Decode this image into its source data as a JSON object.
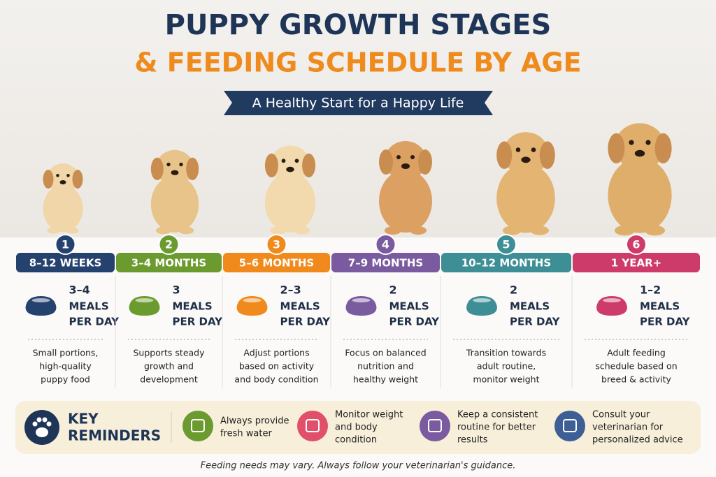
{
  "header": {
    "title_line1": "PUPPY GROWTH STAGES",
    "title_line2": "& FEEDING SCHEDULE BY AGE",
    "subtitle": "A Healthy Start for a Happy Life"
  },
  "stages": [
    {
      "number": 1,
      "age": "8–12 WEEKS",
      "meals": "3–4",
      "unit": [
        "MEALS",
        "PER DAY"
      ],
      "description": [
        "Small portions,",
        "high-quality",
        "puppy food"
      ],
      "color": "#25426e"
    },
    {
      "number": 2,
      "age": "3–4 MONTHS",
      "meals": "3",
      "unit": [
        "MEALS",
        "PER DAY"
      ],
      "description": [
        "Supports steady",
        "growth and",
        "development"
      ],
      "color": "#6b9b2f"
    },
    {
      "number": 3,
      "age": "5–6 MONTHS",
      "meals": "2–3",
      "unit": [
        "MEALS",
        "PER DAY"
      ],
      "description": [
        "Adjust portions",
        "based on activity",
        "and body condition"
      ],
      "color": "#f08a1c"
    },
    {
      "number": 4,
      "age": "7–9 MONTHS",
      "meals": "2",
      "unit": [
        "MEALS",
        "PER DAY"
      ],
      "description": [
        "Focus on balanced",
        "nutrition and",
        "healthy weight"
      ],
      "color": "#7a5b9f"
    },
    {
      "number": 5,
      "age": "10–12 MONTHS",
      "meals": "2",
      "unit": [
        "MEALS",
        "PER DAY"
      ],
      "description": [
        "Transition towards",
        "adult routine,",
        "monitor weight"
      ],
      "color": "#3e8e96"
    },
    {
      "number": 6,
      "age": "1 YEAR+",
      "meals": "1–2",
      "unit": [
        "MEALS",
        "PER DAY"
      ],
      "description": [
        "Adult feeding",
        "schedule based on",
        "breed & activity"
      ],
      "color": "#cd3b6b"
    }
  ],
  "reminders": {
    "title": [
      "KEY",
      "REMINDERS"
    ],
    "items": [
      {
        "text": [
          "Always provide",
          "fresh water"
        ],
        "color": "#6b9b2f"
      },
      {
        "text": [
          "Monitor weight",
          "and body",
          "condition"
        ],
        "color": "#e0506a"
      },
      {
        "text": [
          "Keep a consistent",
          "routine for better",
          "results"
        ],
        "color": "#7a5b9f"
      },
      {
        "text": [
          "Consult your",
          "veterinarian for",
          "personalized advice"
        ],
        "color": "#3d5f95"
      }
    ]
  },
  "footer": "Feeding needs may vary. Always follow your veterinarian's guidance."
}
